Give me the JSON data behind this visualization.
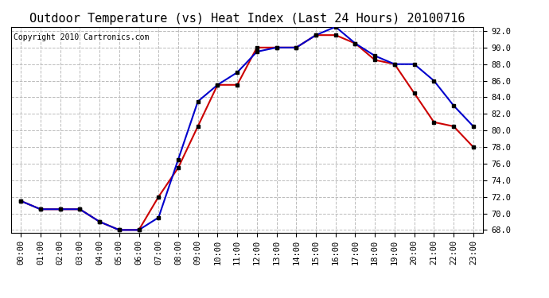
{
  "title": "Outdoor Temperature (vs) Heat Index (Last 24 Hours) 20100716",
  "copyright": "Copyright 2010 Cartronics.com",
  "hours": [
    "00:00",
    "01:00",
    "02:00",
    "03:00",
    "04:00",
    "05:00",
    "06:00",
    "07:00",
    "08:00",
    "09:00",
    "10:00",
    "11:00",
    "12:00",
    "13:00",
    "14:00",
    "15:00",
    "16:00",
    "17:00",
    "18:00",
    "19:00",
    "20:00",
    "21:00",
    "22:00",
    "23:00"
  ],
  "temp": [
    71.5,
    70.5,
    70.5,
    70.5,
    69.0,
    68.0,
    68.0,
    72.0,
    75.5,
    80.5,
    85.5,
    85.5,
    90.0,
    90.0,
    90.0,
    91.5,
    91.5,
    90.5,
    88.5,
    88.0,
    84.5,
    81.0,
    80.5,
    78.0
  ],
  "heat_index": [
    71.5,
    70.5,
    70.5,
    70.5,
    69.0,
    68.0,
    68.0,
    69.5,
    76.5,
    83.5,
    85.5,
    87.0,
    89.5,
    90.0,
    90.0,
    91.5,
    92.5,
    90.5,
    89.0,
    88.0,
    88.0,
    86.0,
    83.0,
    80.5
  ],
  "temp_color": "#cc0000",
  "heat_index_color": "#0000cc",
  "bg_color": "#ffffff",
  "plot_bg_color": "#ffffff",
  "grid_color": "#bbbbbb",
  "ylim_min": 68.0,
  "ylim_max": 92.0,
  "ytick_step": 2.0,
  "title_fontsize": 11,
  "copyright_fontsize": 7,
  "tick_fontsize": 7.5,
  "line_width": 1.5,
  "marker": "s",
  "marker_size": 3,
  "marker_color": "#000000"
}
